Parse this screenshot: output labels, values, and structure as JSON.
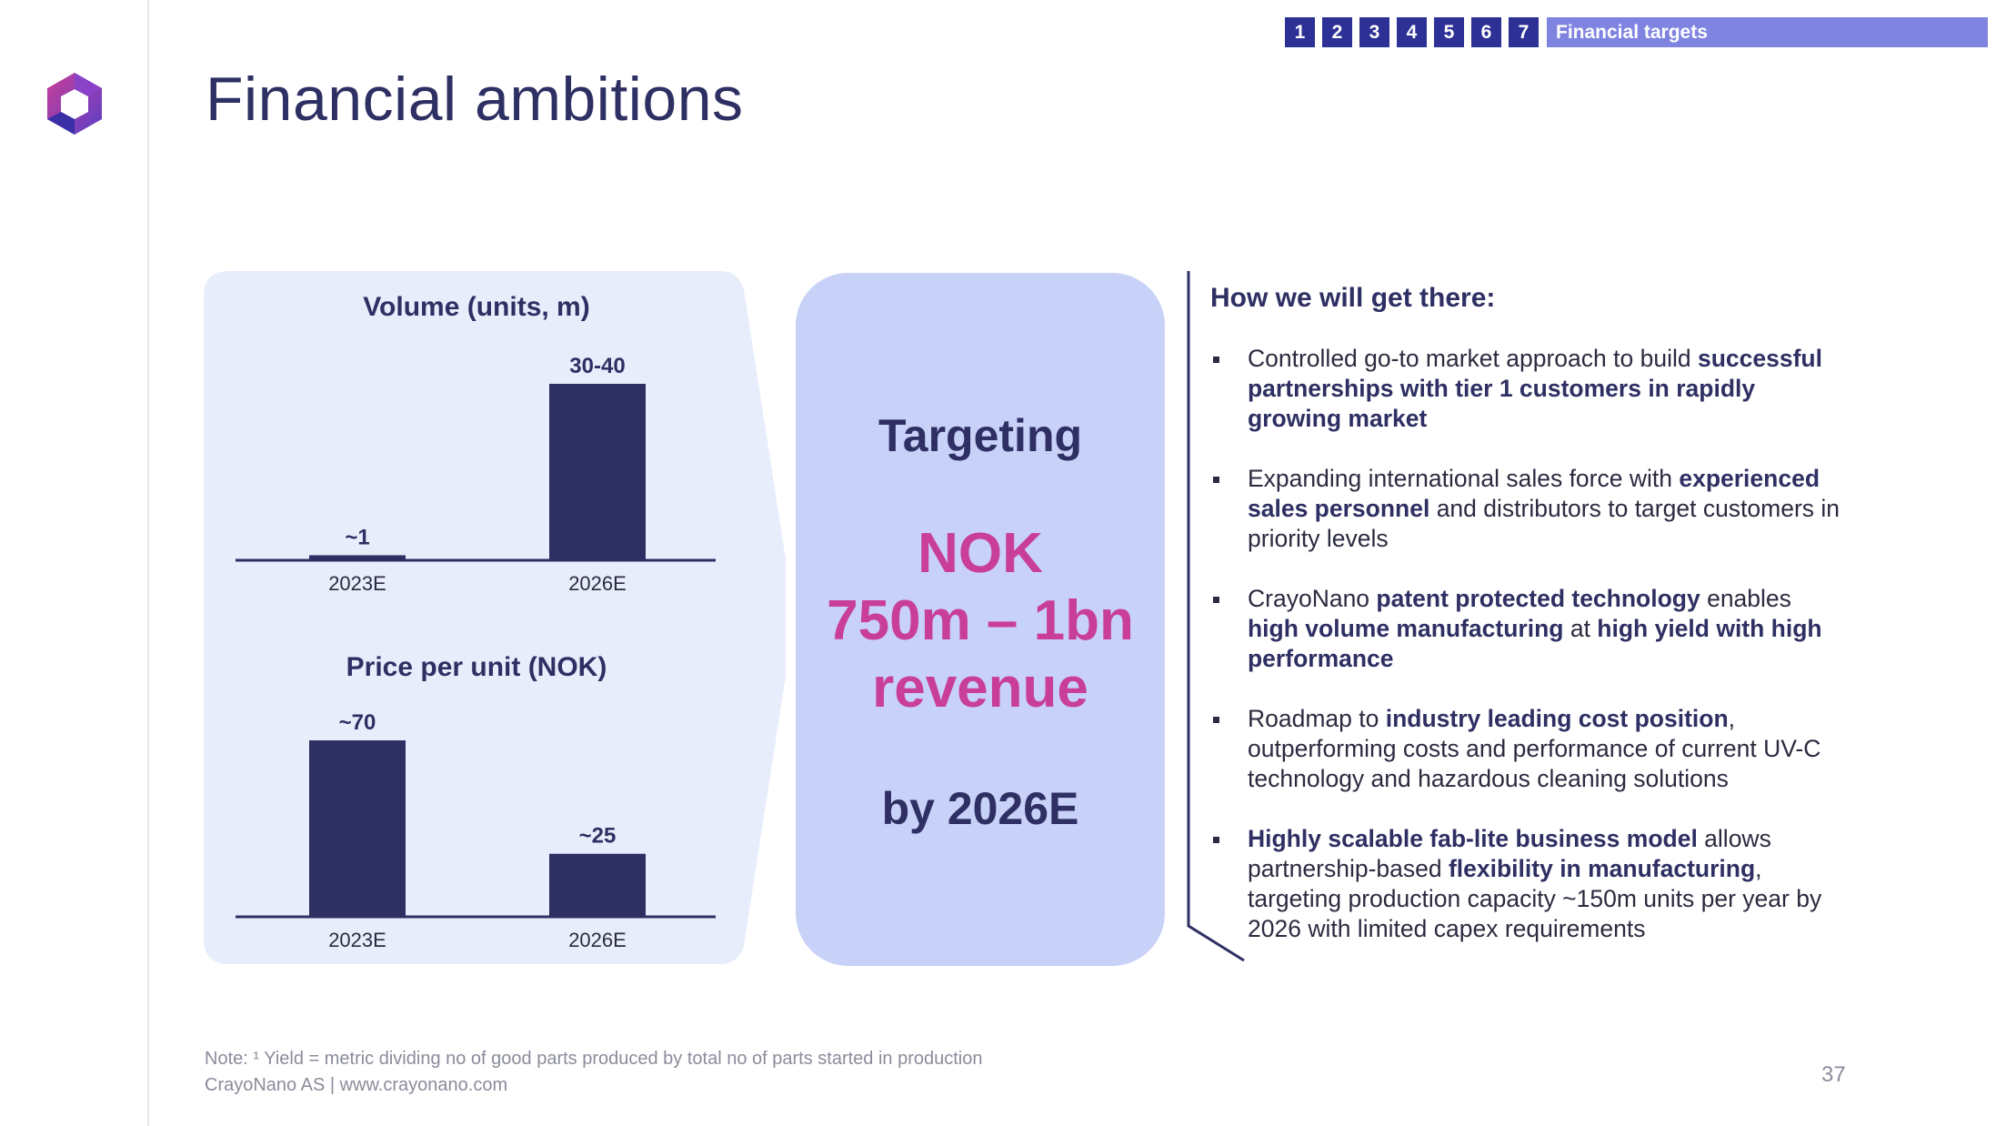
{
  "header": {
    "title": "Financial ambitions",
    "nav_numbers": [
      "1",
      "2",
      "3",
      "4",
      "5",
      "6",
      "7"
    ],
    "nav_section": "Financial targets"
  },
  "chart_data": [
    {
      "type": "bar",
      "title": "Volume (units, m)",
      "categories": [
        "2023E",
        "2026E"
      ],
      "values": [
        1,
        35
      ],
      "data_labels": [
        "~1",
        "30-40"
      ],
      "ylim": [
        0,
        35
      ],
      "color": "#2e2f63"
    },
    {
      "type": "bar",
      "title": "Price per unit (NOK)",
      "categories": [
        "2023E",
        "2026E"
      ],
      "values": [
        70,
        25
      ],
      "data_labels": [
        "~70",
        "~25"
      ],
      "ylim": [
        0,
        70
      ],
      "color": "#2e2f63"
    }
  ],
  "target": {
    "line1": "Targeting",
    "line2": "NOK",
    "line3": "750m – 1bn",
    "line4": "revenue",
    "line5": "by 2026E"
  },
  "how": {
    "title": "How we will get there:",
    "bullets": [
      [
        {
          "t": "Controlled go-to market approach to build ",
          "b": false
        },
        {
          "t": "successful partnerships with tier 1 customers in rapidly growing market",
          "b": true
        }
      ],
      [
        {
          "t": "Expanding international sales force with ",
          "b": false
        },
        {
          "t": "experienced sales personnel",
          "b": true
        },
        {
          "t": " and distributors to target customers in priority levels",
          "b": false
        }
      ],
      [
        {
          "t": "CrayoNano ",
          "b": false
        },
        {
          "t": "patent protected technology",
          "b": true
        },
        {
          "t": " enables ",
          "b": false
        },
        {
          "t": "high volume manufacturing",
          "b": true
        },
        {
          "t": " at ",
          "b": false
        },
        {
          "t": "high yield with high performance",
          "b": true
        }
      ],
      [
        {
          "t": "Roadmap to ",
          "b": false
        },
        {
          "t": "industry leading cost position",
          "b": true
        },
        {
          "t": ", outperforming costs and performance of current UV-C technology and hazardous cleaning solutions",
          "b": false
        }
      ],
      [
        {
          "t": "Highly scalable fab-lite business model",
          "b": true
        },
        {
          "t": " allows partnership-based ",
          "b": false
        },
        {
          "t": "flexibility in manufacturing",
          "b": true
        },
        {
          "t": ", targeting production capacity ~150m units per year by 2026 with limited capex requirements",
          "b": false
        }
      ]
    ]
  },
  "footer": {
    "note": "Note: ¹ Yield = metric dividing no of good parts produced by total no of parts started in production",
    "company": "CrayoNano AS | www.crayonano.com",
    "page": "37"
  },
  "colors": {
    "navy": "#2e2f63",
    "magenta": "#c83e98",
    "panel": "#e8edfc",
    "target_box": "#c8d1f8",
    "nav_num": "#2d3196",
    "nav_label": "#7f84e0"
  }
}
